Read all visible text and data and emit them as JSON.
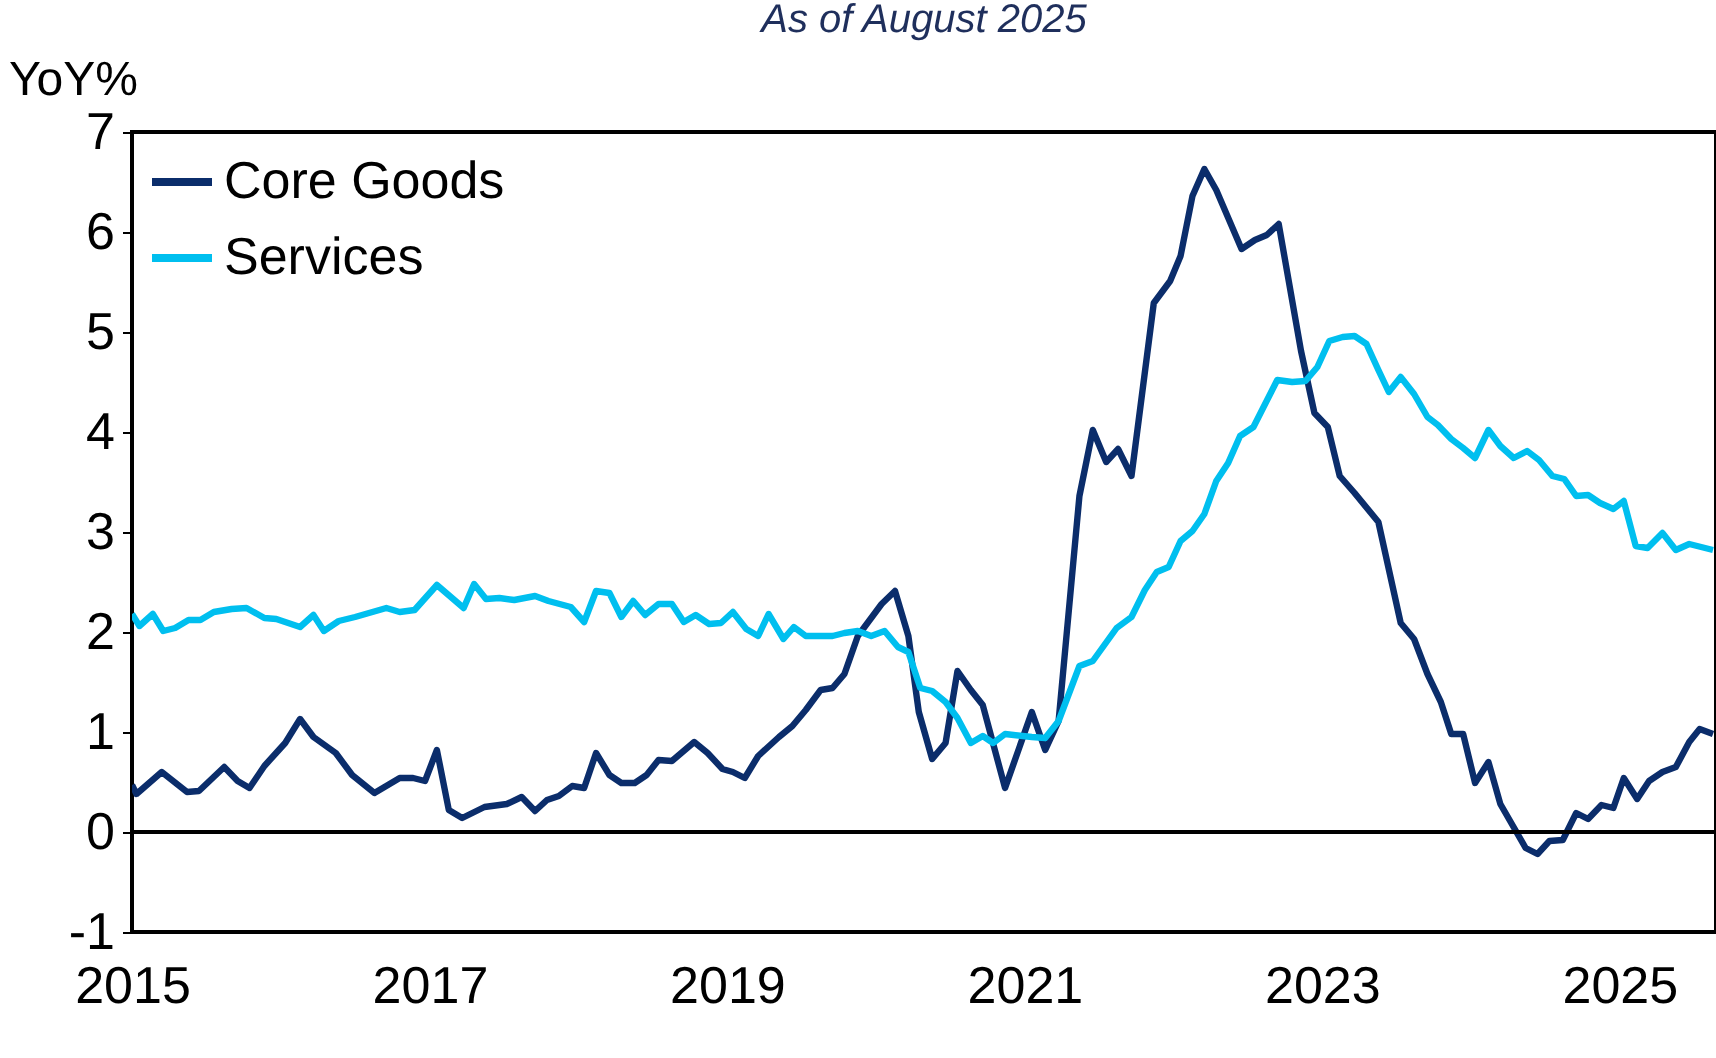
{
  "chart_data": {
    "type": "line",
    "subtitle": "As of August 2025",
    "ylabel": "YoY%",
    "xlim": [
      2015,
      2025.65
    ],
    "xticks": [
      2015,
      2017,
      2019,
      2021,
      2023,
      2025
    ],
    "ylim": [
      -1,
      7
    ],
    "yticks": [
      -1,
      0,
      1,
      2,
      3,
      4,
      5,
      6,
      7
    ],
    "grid": false,
    "legend": "top left",
    "line_style": "solid",
    "marker": "none",
    "ref_lines": [
      {
        "axis": "y",
        "value": 0,
        "color": "#000000"
      }
    ],
    "series": [
      {
        "name": "Core Goods",
        "color": "#0b2d6b",
        "x": [
          2015.0,
          2015.03,
          2015.2,
          2015.37,
          2015.45,
          2015.62,
          2015.71,
          2015.79,
          2015.89,
          2016.03,
          2016.13,
          2016.22,
          2016.37,
          2016.48,
          2016.63,
          2016.8,
          2016.89,
          2016.97,
          2017.05,
          2017.13,
          2017.22,
          2017.37,
          2017.52,
          2017.62,
          2017.71,
          2017.79,
          2017.87,
          2017.96,
          2018.04,
          2018.12,
          2018.21,
          2018.29,
          2018.38,
          2018.46,
          2018.54,
          2018.63,
          2018.78,
          2018.87,
          2018.97,
          2019.04,
          2019.12,
          2019.21,
          2019.35,
          2019.44,
          2019.53,
          2019.63,
          2019.71,
          2019.79,
          2019.88,
          2020.04,
          2020.13,
          2020.22,
          2020.29,
          2020.38,
          2020.47,
          2020.55,
          2020.64,
          2020.72,
          2020.87,
          2021.05,
          2021.14,
          2021.23,
          2021.37,
          2021.46,
          2021.55,
          2021.63,
          2021.72,
          2021.87,
          2021.98,
          2022.05,
          2022.13,
          2022.21,
          2022.29,
          2022.46,
          2022.55,
          2022.63,
          2022.71,
          2022.86,
          2022.95,
          2023.04,
          2023.12,
          2023.22,
          2023.38,
          2023.53,
          2023.62,
          2023.71,
          2023.8,
          2023.87,
          2023.95,
          2024.03,
          2024.12,
          2024.2,
          2024.37,
          2024.45,
          2024.53,
          2024.62,
          2024.71,
          2024.79,
          2024.88,
          2024.96,
          2025.03,
          2025.12,
          2025.2,
          2025.29,
          2025.38,
          2025.47,
          2025.54,
          2025.63
        ],
        "values": [
          0.47,
          0.38,
          0.6,
          0.4,
          0.41,
          0.65,
          0.51,
          0.44,
          0.66,
          0.89,
          1.13,
          0.95,
          0.79,
          0.57,
          0.39,
          0.54,
          0.54,
          0.51,
          0.82,
          0.22,
          0.14,
          0.25,
          0.28,
          0.35,
          0.21,
          0.32,
          0.36,
          0.46,
          0.44,
          0.79,
          0.57,
          0.49,
          0.49,
          0.57,
          0.72,
          0.71,
          0.9,
          0.79,
          0.63,
          0.6,
          0.54,
          0.76,
          0.95,
          1.06,
          1.22,
          1.42,
          1.44,
          1.58,
          1.96,
          2.28,
          2.41,
          1.96,
          1.2,
          0.73,
          0.89,
          1.61,
          1.42,
          1.27,
          0.44,
          1.2,
          0.82,
          1.11,
          3.36,
          4.02,
          3.7,
          3.83,
          3.56,
          5.29,
          5.51,
          5.76,
          6.36,
          6.63,
          6.42,
          5.83,
          5.92,
          5.97,
          6.08,
          4.81,
          4.19,
          4.05,
          3.56,
          3.39,
          3.1,
          2.09,
          1.93,
          1.58,
          1.3,
          0.98,
          0.98,
          0.49,
          0.7,
          0.28,
          -0.16,
          -0.22,
          -0.09,
          -0.08,
          0.19,
          0.13,
          0.27,
          0.24,
          0.54,
          0.33,
          0.51,
          0.6,
          0.65,
          0.9,
          1.03,
          0.98
        ]
      },
      {
        "name": "Services",
        "color": "#00bfef",
        "x": [
          2015.0,
          2015.05,
          2015.14,
          2015.21,
          2015.29,
          2015.38,
          2015.46,
          2015.55,
          2015.67,
          2015.77,
          2015.89,
          2015.97,
          2016.13,
          2016.22,
          2016.29,
          2016.39,
          2016.5,
          2016.71,
          2016.8,
          2016.9,
          2017.05,
          2017.23,
          2017.3,
          2017.38,
          2017.47,
          2017.57,
          2017.71,
          2017.8,
          2017.95,
          2018.04,
          2018.12,
          2018.21,
          2018.29,
          2018.37,
          2018.45,
          2018.54,
          2018.63,
          2018.71,
          2018.79,
          2018.88,
          2018.96,
          2019.04,
          2019.13,
          2019.21,
          2019.28,
          2019.38,
          2019.45,
          2019.53,
          2019.71,
          2019.79,
          2019.88,
          2019.97,
          2020.06,
          2020.15,
          2020.22,
          2020.3,
          2020.38,
          2020.47,
          2020.55,
          2020.64,
          2020.72,
          2020.79,
          2020.87,
          2021.05,
          2021.14,
          2021.23,
          2021.37,
          2021.46,
          2021.62,
          2021.72,
          2021.81,
          2021.89,
          2021.97,
          2022.05,
          2022.13,
          2022.21,
          2022.29,
          2022.37,
          2022.45,
          2022.54,
          2022.7,
          2022.8,
          2022.89,
          2022.97,
          2023.05,
          2023.14,
          2023.22,
          2023.3,
          2023.38,
          2023.45,
          2023.53,
          2023.62,
          2023.71,
          2023.78,
          2023.87,
          2023.95,
          2024.03,
          2024.12,
          2024.2,
          2024.29,
          2024.38,
          2024.46,
          2024.55,
          2024.63,
          2024.71,
          2024.79,
          2024.87,
          2024.96,
          2025.03,
          2025.11,
          2025.19,
          2025.29,
          2025.38,
          2025.47,
          2025.63
        ],
        "values": [
          2.18,
          2.06,
          2.18,
          2.01,
          2.04,
          2.12,
          2.12,
          2.2,
          2.23,
          2.24,
          2.14,
          2.13,
          2.05,
          2.17,
          2.01,
          2.11,
          2.15,
          2.24,
          2.2,
          2.22,
          2.47,
          2.24,
          2.48,
          2.33,
          2.34,
          2.32,
          2.36,
          2.31,
          2.25,
          2.1,
          2.41,
          2.39,
          2.15,
          2.31,
          2.17,
          2.28,
          2.28,
          2.1,
          2.17,
          2.08,
          2.09,
          2.2,
          2.03,
          1.96,
          2.18,
          1.93,
          2.05,
          1.96,
          1.96,
          1.99,
          2.01,
          1.96,
          2.01,
          1.85,
          1.8,
          1.44,
          1.41,
          1.3,
          1.14,
          0.89,
          0.96,
          0.89,
          0.98,
          0.95,
          0.94,
          1.11,
          1.66,
          1.71,
          2.04,
          2.15,
          2.42,
          2.6,
          2.65,
          2.91,
          3.01,
          3.18,
          3.51,
          3.69,
          3.96,
          4.05,
          4.52,
          4.5,
          4.51,
          4.65,
          4.91,
          4.95,
          4.96,
          4.88,
          4.62,
          4.4,
          4.55,
          4.38,
          4.15,
          4.07,
          3.93,
          3.84,
          3.74,
          4.02,
          3.86,
          3.74,
          3.81,
          3.72,
          3.56,
          3.53,
          3.36,
          3.37,
          3.29,
          3.23,
          3.31,
          2.86,
          2.84,
          2.99,
          2.82,
          2.88,
          2.82
        ]
      }
    ]
  }
}
